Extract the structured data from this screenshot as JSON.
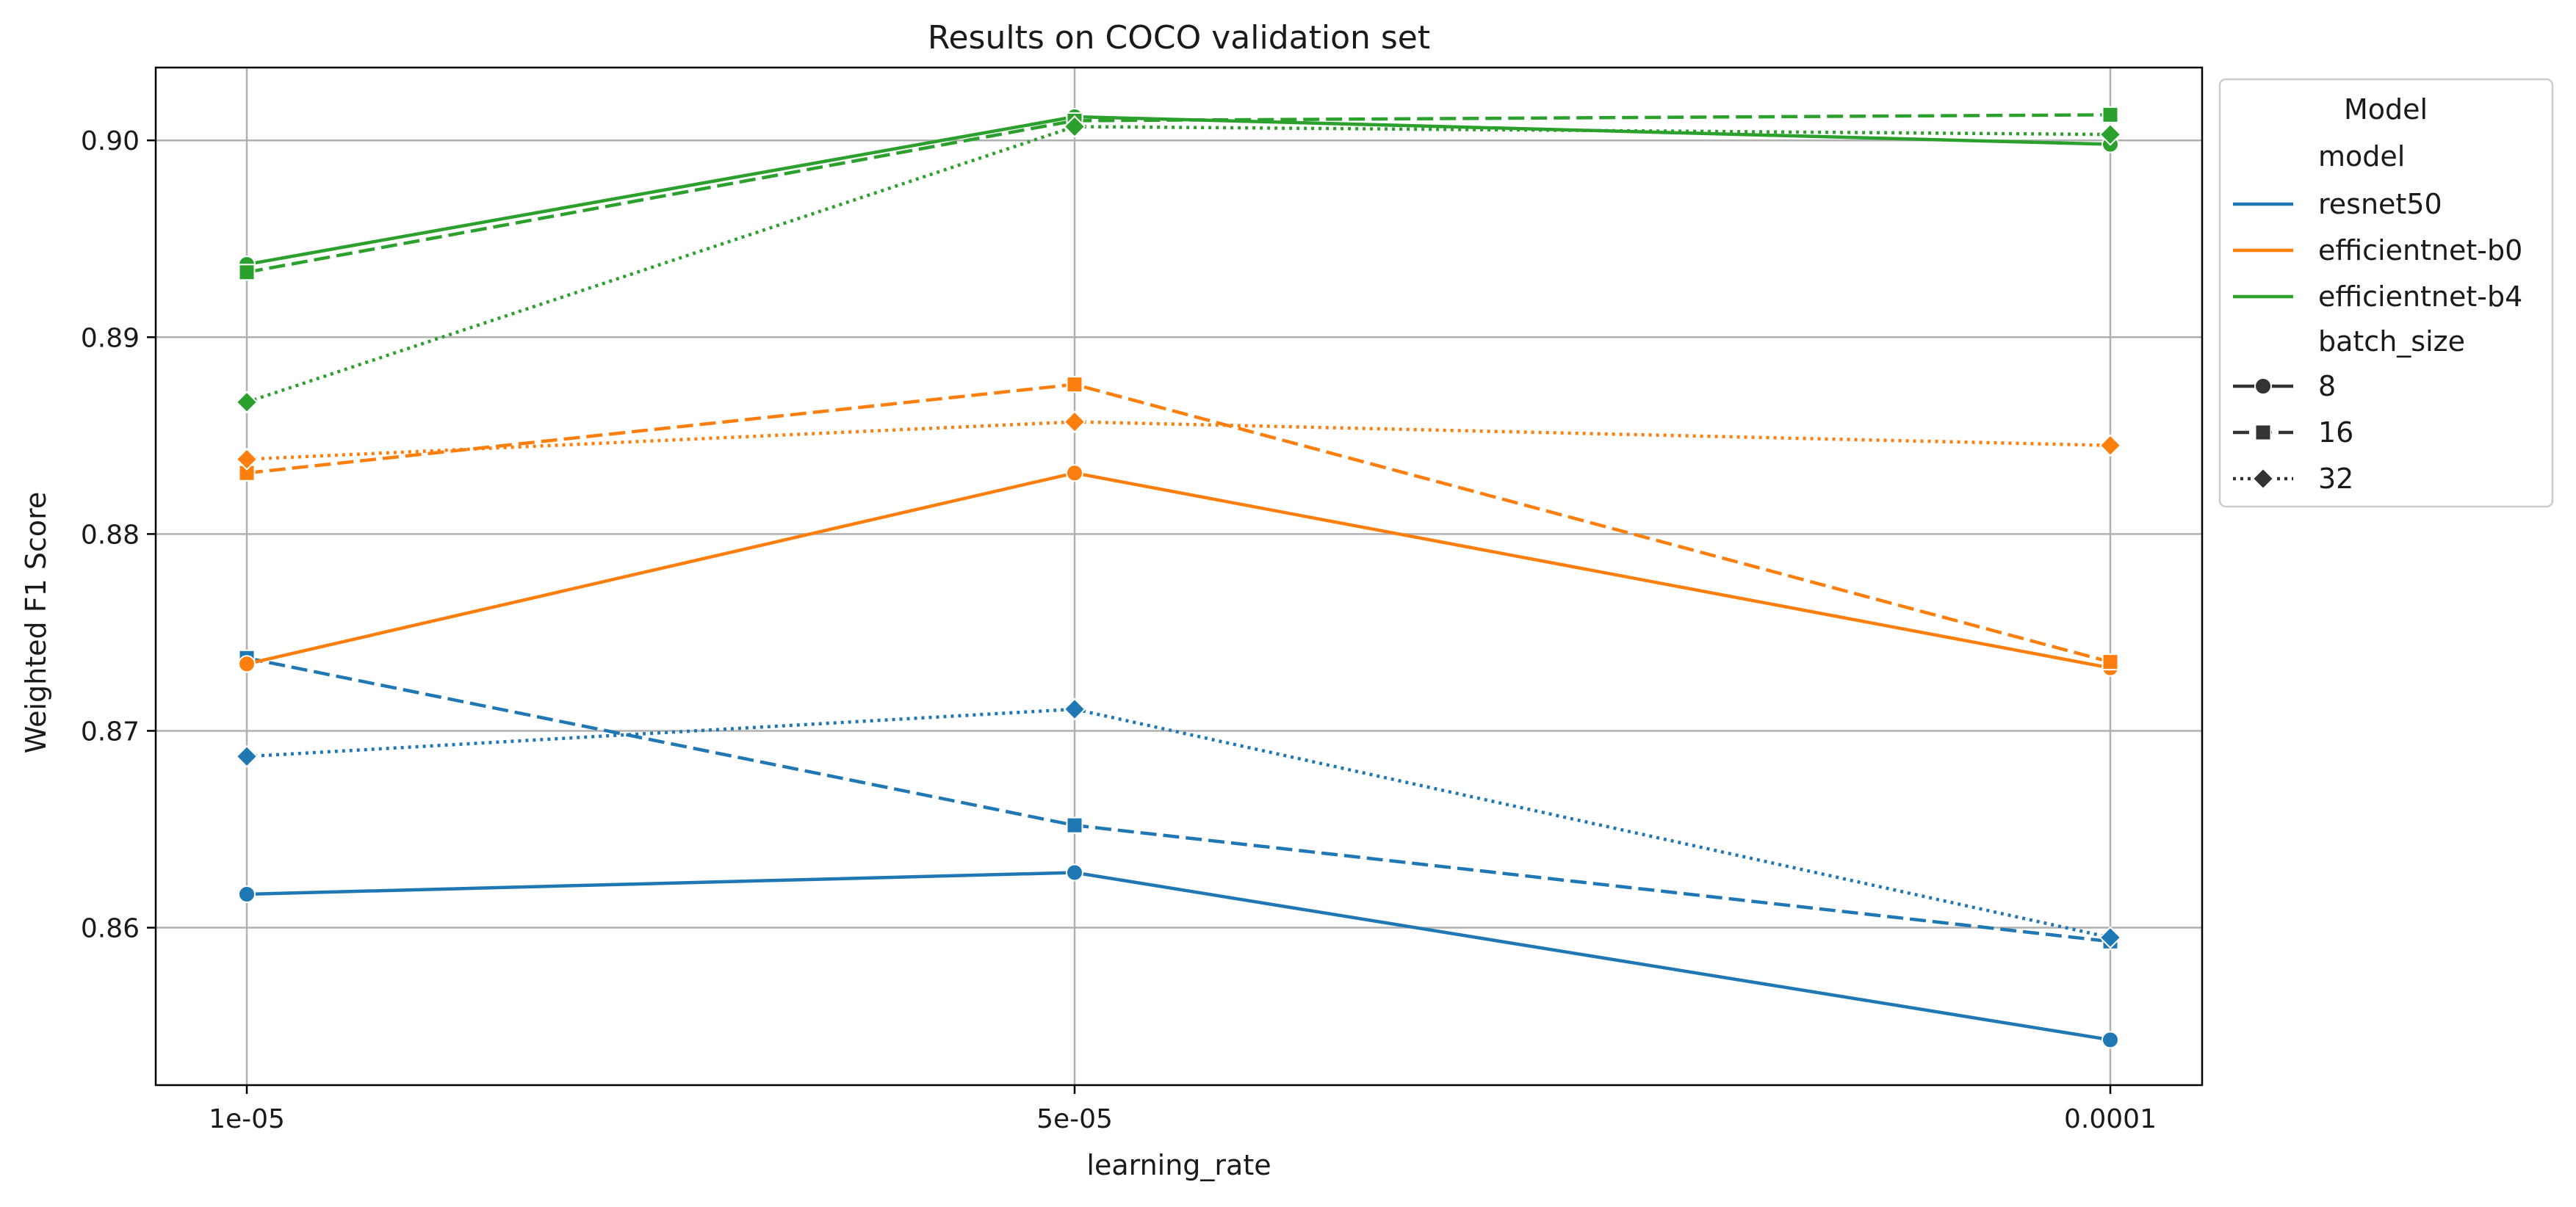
{
  "chart_data": {
    "type": "line",
    "title": "Results on COCO validation set",
    "xlabel": "learning_rate",
    "ylabel": "Weighted F1 Score",
    "categories": [
      "1e-05",
      "5e-05",
      "0.0001"
    ],
    "yticks": [
      0.86,
      0.87,
      0.88,
      0.89,
      0.9
    ],
    "ytick_labels": [
      "0.86",
      "0.87",
      "0.88",
      "0.89",
      "0.90"
    ],
    "ylim": [
      0.852,
      0.9037
    ],
    "grid": true,
    "legend_position": "outside right, top",
    "legend": {
      "title": "Model",
      "hue_title": "model",
      "hue_entries": [
        {
          "label": "resnet50",
          "color": "#1f77b4"
        },
        {
          "label": "efficientnet-b0",
          "color": "#ff7f0e"
        },
        {
          "label": "efficientnet-b4",
          "color": "#2ca02c"
        }
      ],
      "style_title": "batch_size",
      "style_entries": [
        {
          "label": "8",
          "dash": "solid",
          "marker": "circle"
        },
        {
          "label": "16",
          "dash": "dashed",
          "marker": "square"
        },
        {
          "label": "32",
          "dash": "dotted",
          "marker": "diamond"
        }
      ]
    },
    "series": [
      {
        "model": "resnet50",
        "batch_size": "8",
        "color": "#1f77b4",
        "dash": "solid",
        "marker": "circle",
        "values": [
          0.8617,
          0.8628,
          0.8543
        ]
      },
      {
        "model": "resnet50",
        "batch_size": "16",
        "color": "#1f77b4",
        "dash": "dashed",
        "marker": "square",
        "values": [
          0.8737,
          0.8652,
          0.8593
        ]
      },
      {
        "model": "resnet50",
        "batch_size": "32",
        "color": "#1f77b4",
        "dash": "dotted",
        "marker": "diamond",
        "values": [
          0.8687,
          0.8711,
          0.8595
        ]
      },
      {
        "model": "efficientnet-b0",
        "batch_size": "8",
        "color": "#ff7f0e",
        "dash": "solid",
        "marker": "circle",
        "values": [
          0.8734,
          0.8831,
          0.8732
        ]
      },
      {
        "model": "efficientnet-b0",
        "batch_size": "16",
        "color": "#ff7f0e",
        "dash": "dashed",
        "marker": "square",
        "values": [
          0.8831,
          0.8876,
          0.8735
        ]
      },
      {
        "model": "efficientnet-b0",
        "batch_size": "32",
        "color": "#ff7f0e",
        "dash": "dotted",
        "marker": "diamond",
        "values": [
          0.8838,
          0.8857,
          0.8845
        ]
      },
      {
        "model": "efficientnet-b4",
        "batch_size": "8",
        "color": "#2ca02c",
        "dash": "solid",
        "marker": "circle",
        "values": [
          0.8937,
          0.9012,
          0.8998
        ]
      },
      {
        "model": "efficientnet-b4",
        "batch_size": "16",
        "color": "#2ca02c",
        "dash": "dashed",
        "marker": "square",
        "values": [
          0.8933,
          0.901,
          0.9013
        ]
      },
      {
        "model": "efficientnet-b4",
        "batch_size": "32",
        "color": "#2ca02c",
        "dash": "dotted",
        "marker": "diamond",
        "values": [
          0.8867,
          0.9007,
          0.9003
        ]
      }
    ]
  }
}
